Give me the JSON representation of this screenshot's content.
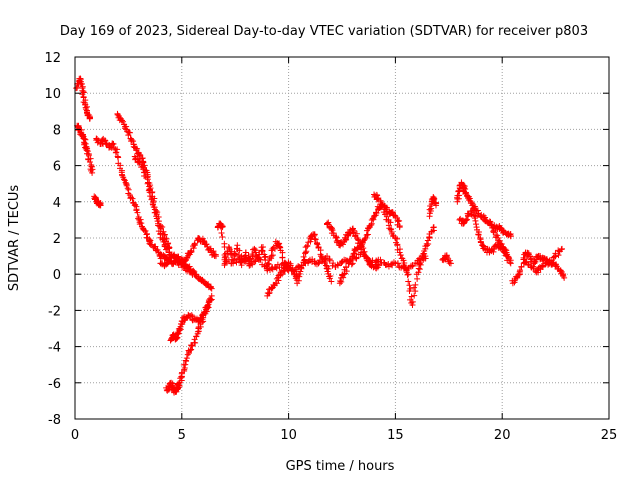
{
  "chart_data": {
    "type": "scatter",
    "title": "Day 169 of 2023, Sidereal Day-to-day VTEC variation (SDTVAR) for receiver p803",
    "xlabel": "GPS time / hours",
    "ylabel": "SDTVAR / TECUs",
    "xlim": [
      0,
      25
    ],
    "ylim": [
      -8,
      12
    ],
    "xticks": [
      0,
      5,
      10,
      15,
      20,
      25
    ],
    "yticks": [
      -8,
      -6,
      -4,
      -2,
      0,
      2,
      4,
      6,
      8,
      10,
      12
    ],
    "grid": true,
    "marker": "+",
    "color": "#ff0000",
    "series": [
      {
        "name": "SDTVAR",
        "approximate": true,
        "tracks": [
          {
            "x": [
              0.1,
              0.2,
              0.3,
              0.4,
              0.5,
              0.6,
              0.7
            ],
            "y": [
              10.3,
              10.8,
              10.5,
              9.8,
              9.2,
              8.8,
              8.6
            ]
          },
          {
            "x": [
              0.1,
              0.2,
              0.3,
              0.4,
              0.5,
              0.6,
              0.7,
              0.8
            ],
            "y": [
              8.2,
              8.0,
              7.8,
              7.5,
              7.2,
              6.8,
              6.2,
              5.6
            ]
          },
          {
            "x": [
              0.9,
              1.0,
              1.1,
              1.2
            ],
            "y": [
              4.3,
              4.0,
              3.9,
              3.8
            ]
          },
          {
            "x": [
              1.0,
              1.2,
              1.4,
              1.6,
              1.8,
              2.0,
              2.2,
              2.4,
              2.6,
              2.8,
              3.0,
              3.2,
              3.4,
              3.6,
              3.8,
              4.0,
              4.2,
              4.4,
              4.6,
              4.8,
              5.0,
              5.2,
              5.4,
              5.6,
              5.8,
              6.0,
              6.2,
              6.4
            ],
            "y": [
              7.5,
              7.2,
              7.4,
              7.0,
              7.2,
              6.5,
              5.5,
              5.0,
              4.2,
              3.8,
              3.0,
              2.5,
              2.0,
              1.6,
              1.3,
              1.0,
              0.9,
              0.8,
              0.6,
              0.7,
              0.5,
              0.3,
              0.2,
              0.0,
              -0.2,
              -0.4,
              -0.6,
              -0.8
            ]
          },
          {
            "x": [
              2.0,
              2.2,
              2.4,
              2.6,
              2.8,
              3.0,
              3.2,
              3.4,
              3.6,
              3.8,
              4.0,
              4.2,
              4.4
            ],
            "y": [
              8.8,
              8.5,
              8.0,
              7.5,
              7.0,
              6.6,
              6.2,
              5.5,
              4.5,
              3.5,
              2.6,
              2.0,
              1.5
            ]
          },
          {
            "x": [
              2.8,
              3.0,
              3.2,
              3.4,
              3.6,
              3.8,
              4.0,
              4.2,
              4.4,
              4.6,
              4.8,
              5.0,
              5.2,
              5.4,
              5.6
            ],
            "y": [
              6.5,
              6.2,
              5.8,
              5.0,
              4.2,
              3.2,
              2.2,
              1.6,
              1.2,
              1.0,
              0.9,
              0.8,
              0.5,
              0.2,
              0.0
            ]
          },
          {
            "x": [
              4.0,
              4.2,
              4.4,
              4.6,
              4.8,
              5.0,
              5.2,
              5.4,
              5.6,
              5.8,
              6.0,
              6.2,
              6.4,
              6.6
            ],
            "y": [
              0.6,
              0.5,
              0.8,
              1.0,
              0.8,
              0.6,
              0.8,
              1.2,
              1.6,
              2.0,
              1.8,
              1.5,
              1.2,
              1.0
            ]
          },
          {
            "x": [
              4.3,
              4.4,
              4.5,
              4.6,
              4.7,
              4.8,
              4.9,
              5.0,
              5.2,
              5.4,
              5.6,
              5.8,
              6.0,
              6.2,
              6.4
            ],
            "y": [
              -6.4,
              -6.2,
              -6.0,
              -6.3,
              -6.5,
              -6.3,
              -6.0,
              -5.5,
              -4.8,
              -4.2,
              -3.6,
              -3.0,
              -2.4,
              -1.8,
              -1.2
            ]
          },
          {
            "x": [
              4.5,
              4.6,
              4.7,
              4.8,
              4.9,
              5.0,
              5.2,
              5.4,
              5.6,
              5.8,
              6.0,
              6.2,
              6.4
            ],
            "y": [
              -3.6,
              -3.4,
              -3.6,
              -3.3,
              -3.0,
              -2.6,
              -2.4,
              -2.3,
              -2.5,
              -2.6,
              -2.2,
              -1.8,
              -1.4
            ]
          },
          {
            "x": [
              6.7,
              6.8,
              6.9,
              7.0,
              7.2,
              7.4,
              7.6,
              7.8,
              8.0,
              8.2,
              8.4,
              8.6,
              8.8,
              9.0,
              9.2,
              9.4,
              9.6,
              9.8,
              10.0
            ],
            "y": [
              2.6,
              2.8,
              2.6,
              0.5,
              1.5,
              0.8,
              1.6,
              0.5,
              1.2,
              0.6,
              1.4,
              0.8,
              1.5,
              0.4,
              1.0,
              1.8,
              1.5,
              0.6,
              0.2
            ]
          },
          {
            "x": [
              7.0,
              7.4,
              7.8,
              8.2,
              8.6,
              9.0,
              9.4,
              9.8,
              10.2,
              10.6,
              11.0,
              11.4,
              11.8,
              12.2,
              12.6,
              13.0,
              13.4,
              13.8,
              14.2,
              14.6,
              15.0,
              15.4,
              15.8,
              16.2,
              16.4
            ],
            "y": [
              0.8,
              0.6,
              1.0,
              0.5,
              0.9,
              0.2,
              0.4,
              0.6,
              0.2,
              0.5,
              0.8,
              0.6,
              1.0,
              0.4,
              0.8,
              0.6,
              1.2,
              0.7,
              0.8,
              0.5,
              0.6,
              0.3,
              0.5,
              0.8,
              1.0
            ]
          },
          {
            "x": [
              9.0,
              9.2,
              9.4,
              9.6,
              9.8,
              10.0,
              10.2,
              10.4
            ],
            "y": [
              -1.2,
              -0.8,
              -0.5,
              0.0,
              0.3,
              0.6,
              0.2,
              -0.2
            ]
          },
          {
            "x": [
              10.4,
              10.6,
              10.8,
              11.0,
              11.2,
              11.4,
              11.6,
              11.8,
              12.0
            ],
            "y": [
              -0.5,
              0.3,
              1.2,
              2.0,
              2.2,
              1.5,
              0.8,
              0.3,
              -0.4
            ]
          },
          {
            "x": [
              11.8,
              12.0,
              12.2,
              12.4,
              12.6,
              12.8,
              13.0,
              13.2,
              13.4,
              13.6,
              13.8,
              14.0,
              14.2
            ],
            "y": [
              2.8,
              2.5,
              2.0,
              1.6,
              1.8,
              2.2,
              2.5,
              2.0,
              1.5,
              1.0,
              0.6,
              0.4,
              0.5
            ]
          },
          {
            "x": [
              12.4,
              12.6,
              12.8,
              13.0,
              13.2,
              13.4,
              13.6,
              13.8,
              14.0,
              14.2,
              14.4,
              14.6,
              14.8,
              15.0,
              15.2,
              15.4,
              15.6
            ],
            "y": [
              -0.5,
              0.0,
              0.6,
              1.0,
              1.4,
              1.6,
              2.0,
              2.6,
              3.2,
              3.6,
              3.8,
              3.2,
              2.5,
              2.0,
              1.2,
              0.5,
              0.0
            ]
          },
          {
            "x": [
              14.0,
              14.2,
              14.4,
              14.6,
              14.8,
              15.0,
              15.2
            ],
            "y": [
              4.4,
              4.2,
              3.8,
              3.6,
              3.4,
              3.2,
              2.6
            ]
          },
          {
            "x": [
              15.6,
              15.8,
              16.0,
              16.2,
              16.4,
              16.6,
              16.8
            ],
            "y": [
              -0.4,
              -1.7,
              0.0,
              0.8,
              1.4,
              2.0,
              2.6
            ]
          },
          {
            "x": [
              16.6,
              16.7,
              16.8,
              16.9
            ],
            "y": [
              3.2,
              4.0,
              4.2,
              3.8
            ]
          },
          {
            "x": [
              17.2,
              17.4,
              17.6
            ],
            "y": [
              0.8,
              1.0,
              0.6
            ]
          },
          {
            "x": [
              17.9,
              18.0,
              18.1,
              18.2,
              18.3,
              18.4,
              18.6,
              18.8,
              19.0,
              19.2,
              19.4,
              19.6,
              19.8,
              20.0,
              20.2,
              20.4
            ],
            "y": [
              4.0,
              4.6,
              5.0,
              4.8,
              4.5,
              4.2,
              3.8,
              3.5,
              3.2,
              3.0,
              2.8,
              2.6,
              2.6,
              2.4,
              2.2,
              2.1
            ]
          },
          {
            "x": [
              18.0,
              18.2,
              18.4,
              18.6,
              18.8,
              19.0,
              19.2,
              19.4,
              19.6,
              19.8,
              20.0,
              20.2
            ],
            "y": [
              3.0,
              2.8,
              3.2,
              3.5,
              2.6,
              1.8,
              1.4,
              1.2,
              1.4,
              1.6,
              1.5,
              1.2
            ]
          },
          {
            "x": [
              19.6,
              19.8,
              20.0,
              20.2,
              20.4
            ],
            "y": [
              2.4,
              2.0,
              1.5,
              1.0,
              0.6
            ]
          },
          {
            "x": [
              20.5,
              20.7,
              20.9,
              21.1,
              21.3,
              21.5,
              21.7,
              21.9,
              22.1,
              22.3,
              22.5,
              22.7,
              22.9
            ],
            "y": [
              -0.5,
              -0.2,
              0.4,
              1.2,
              1.0,
              0.6,
              1.0,
              0.8,
              0.8,
              0.6,
              0.5,
              0.2,
              -0.2
            ]
          },
          {
            "x": [
              21.0,
              21.3,
              21.6,
              21.9,
              22.2,
              22.5,
              22.8
            ],
            "y": [
              0.9,
              0.5,
              0.1,
              0.4,
              0.6,
              1.0,
              1.4
            ]
          }
        ]
      }
    ]
  }
}
